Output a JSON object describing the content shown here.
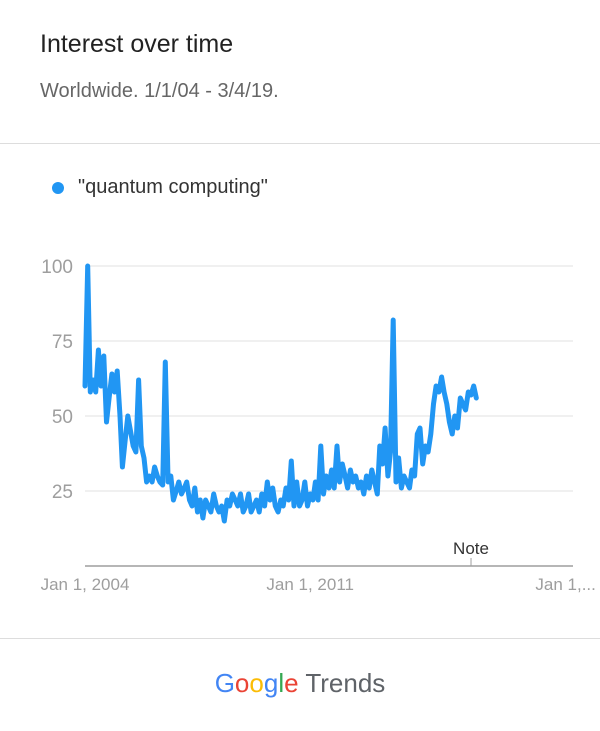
{
  "header": {
    "title": "Interest over time",
    "subtitle": "Worldwide. 1/1/04 - 3/4/19."
  },
  "legend": {
    "label": "\"quantum computing\""
  },
  "footer": {
    "brand_letters": [
      "G",
      "o",
      "o",
      "g",
      "l",
      "e"
    ],
    "product": "Trends"
  },
  "colors": {
    "series": "#2196F3",
    "grid": "#e0e0e0",
    "tick": "#9e9e9e",
    "brand_blue": "#4285F4",
    "brand_red": "#EA4335",
    "brand_yellow": "#FBBC05",
    "brand_green": "#34A853"
  },
  "chart_data": {
    "type": "line",
    "title": "Interest over time",
    "subtitle": "Worldwide. 1/1/04 - 3/4/19.",
    "xlabel": "",
    "ylabel": "",
    "x_range": [
      "2004-01-01",
      "2019-03-04"
    ],
    "ylim": [
      0,
      100
    ],
    "y_ticks": [
      25,
      50,
      75,
      100
    ],
    "x_ticks": [
      {
        "date": "2004-01-01",
        "label": "Jan 1, 2004"
      },
      {
        "date": "2011-01-01",
        "label": "Jan 1, 2011"
      },
      {
        "date": "2018-01-01",
        "label": "Jan 1,..."
      }
    ],
    "grid": true,
    "legend_position": "top-left",
    "annotations": [
      {
        "date": "2016-01-01",
        "text": "Note"
      }
    ],
    "series": [
      {
        "name": "\"quantum computing\"",
        "color": "#2196F3",
        "points": [
          [
            "2004-01-01",
            60
          ],
          [
            "2004-02-01",
            100
          ],
          [
            "2004-03-01",
            58
          ],
          [
            "2004-04-01",
            62
          ],
          [
            "2004-05-01",
            58
          ],
          [
            "2004-06-01",
            72
          ],
          [
            "2004-07-01",
            60
          ],
          [
            "2004-08-01",
            70
          ],
          [
            "2004-09-01",
            48
          ],
          [
            "2004-10-01",
            56
          ],
          [
            "2004-11-01",
            64
          ],
          [
            "2004-12-01",
            58
          ],
          [
            "2005-01-01",
            65
          ],
          [
            "2005-02-01",
            50
          ],
          [
            "2005-03-01",
            33
          ],
          [
            "2005-04-01",
            42
          ],
          [
            "2005-05-01",
            50
          ],
          [
            "2005-06-01",
            45
          ],
          [
            "2005-07-01",
            40
          ],
          [
            "2005-08-01",
            38
          ],
          [
            "2005-09-01",
            62
          ],
          [
            "2005-10-01",
            40
          ],
          [
            "2005-11-01",
            36
          ],
          [
            "2005-12-01",
            28
          ],
          [
            "2006-01-01",
            30
          ],
          [
            "2006-02-01",
            28
          ],
          [
            "2006-03-01",
            33
          ],
          [
            "2006-04-01",
            30
          ],
          [
            "2006-05-01",
            28
          ],
          [
            "2006-06-01",
            27
          ],
          [
            "2006-07-01",
            68
          ],
          [
            "2006-08-01",
            28
          ],
          [
            "2006-09-01",
            30
          ],
          [
            "2006-10-01",
            22
          ],
          [
            "2006-11-01",
            25
          ],
          [
            "2006-12-01",
            28
          ],
          [
            "2007-01-01",
            24
          ],
          [
            "2007-02-01",
            26
          ],
          [
            "2007-03-01",
            28
          ],
          [
            "2007-04-01",
            22
          ],
          [
            "2007-05-01",
            20
          ],
          [
            "2007-06-01",
            26
          ],
          [
            "2007-07-01",
            18
          ],
          [
            "2007-08-01",
            22
          ],
          [
            "2007-09-01",
            16
          ],
          [
            "2007-10-01",
            22
          ],
          [
            "2007-11-01",
            20
          ],
          [
            "2007-12-01",
            18
          ],
          [
            "2008-01-01",
            24
          ],
          [
            "2008-02-01",
            20
          ],
          [
            "2008-03-01",
            18
          ],
          [
            "2008-04-01",
            20
          ],
          [
            "2008-05-01",
            15
          ],
          [
            "2008-06-01",
            22
          ],
          [
            "2008-07-01",
            20
          ],
          [
            "2008-08-01",
            24
          ],
          [
            "2008-09-01",
            22
          ],
          [
            "2008-10-01",
            20
          ],
          [
            "2008-11-01",
            24
          ],
          [
            "2008-12-01",
            18
          ],
          [
            "2009-01-01",
            20
          ],
          [
            "2009-02-01",
            24
          ],
          [
            "2009-03-01",
            18
          ],
          [
            "2009-04-01",
            20
          ],
          [
            "2009-05-01",
            22
          ],
          [
            "2009-06-01",
            18
          ],
          [
            "2009-07-01",
            24
          ],
          [
            "2009-08-01",
            20
          ],
          [
            "2009-09-01",
            28
          ],
          [
            "2009-10-01",
            22
          ],
          [
            "2009-11-01",
            26
          ],
          [
            "2009-12-01",
            20
          ],
          [
            "2010-01-01",
            18
          ],
          [
            "2010-02-01",
            22
          ],
          [
            "2010-03-01",
            20
          ],
          [
            "2010-04-01",
            26
          ],
          [
            "2010-05-01",
            22
          ],
          [
            "2010-06-01",
            35
          ],
          [
            "2010-07-01",
            20
          ],
          [
            "2010-08-01",
            28
          ],
          [
            "2010-09-01",
            20
          ],
          [
            "2010-10-01",
            22
          ],
          [
            "2010-11-01",
            28
          ],
          [
            "2010-12-01",
            20
          ],
          [
            "2011-01-01",
            24
          ],
          [
            "2011-02-01",
            22
          ],
          [
            "2011-03-01",
            28
          ],
          [
            "2011-04-01",
            22
          ],
          [
            "2011-05-01",
            40
          ],
          [
            "2011-06-01",
            24
          ],
          [
            "2011-07-01",
            30
          ],
          [
            "2011-08-01",
            26
          ],
          [
            "2011-09-01",
            32
          ],
          [
            "2011-10-01",
            26
          ],
          [
            "2011-11-01",
            40
          ],
          [
            "2011-12-01",
            28
          ],
          [
            "2012-01-01",
            34
          ],
          [
            "2012-02-01",
            30
          ],
          [
            "2012-03-01",
            26
          ],
          [
            "2012-04-01",
            32
          ],
          [
            "2012-05-01",
            28
          ],
          [
            "2012-06-01",
            30
          ],
          [
            "2012-07-01",
            26
          ],
          [
            "2012-08-01",
            28
          ],
          [
            "2012-09-01",
            24
          ],
          [
            "2012-10-01",
            30
          ],
          [
            "2012-11-01",
            26
          ],
          [
            "2012-12-01",
            32
          ],
          [
            "2013-01-01",
            28
          ],
          [
            "2013-02-01",
            24
          ],
          [
            "2013-03-01",
            40
          ],
          [
            "2013-04-01",
            34
          ],
          [
            "2013-05-01",
            46
          ],
          [
            "2013-06-01",
            30
          ],
          [
            "2013-07-01",
            38
          ],
          [
            "2013-08-01",
            82
          ],
          [
            "2013-09-01",
            28
          ],
          [
            "2013-10-01",
            36
          ],
          [
            "2013-11-01",
            26
          ],
          [
            "2013-12-01",
            30
          ],
          [
            "2014-01-01",
            28
          ],
          [
            "2014-02-01",
            26
          ],
          [
            "2014-03-01",
            32
          ],
          [
            "2014-04-01",
            30
          ],
          [
            "2014-05-01",
            44
          ],
          [
            "2014-06-01",
            46
          ],
          [
            "2014-07-01",
            34
          ],
          [
            "2014-08-01",
            40
          ],
          [
            "2014-09-01",
            38
          ],
          [
            "2014-10-01",
            44
          ],
          [
            "2014-11-01",
            54
          ],
          [
            "2014-12-01",
            60
          ],
          [
            "2015-01-01",
            58
          ],
          [
            "2015-02-01",
            63
          ],
          [
            "2015-03-01",
            58
          ],
          [
            "2015-04-01",
            54
          ],
          [
            "2015-05-01",
            48
          ],
          [
            "2015-06-01",
            44
          ],
          [
            "2015-07-01",
            50
          ],
          [
            "2015-08-01",
            46
          ],
          [
            "2015-09-01",
            56
          ],
          [
            "2015-10-01",
            54
          ],
          [
            "2015-11-01",
            52
          ],
          [
            "2015-12-01",
            58
          ],
          [
            "2016-01-01",
            57
          ],
          [
            "2016-02-01",
            60
          ],
          [
            "2016-03-01",
            56
          ]
        ]
      }
    ]
  }
}
